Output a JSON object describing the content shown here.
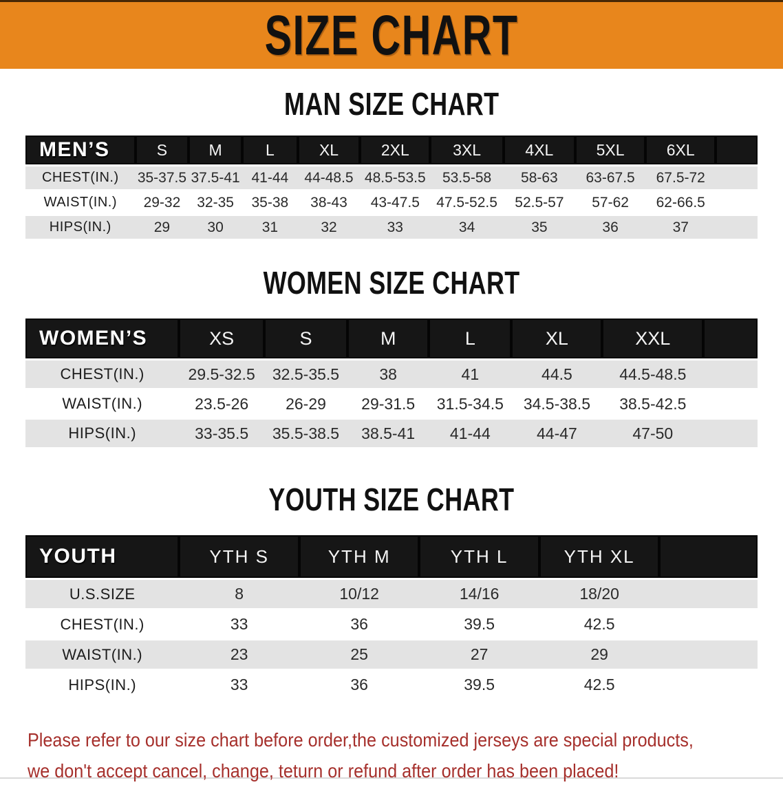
{
  "banner": {
    "title": "SIZE CHART"
  },
  "sections": {
    "men": {
      "heading": "MAN SIZE CHART",
      "table": {
        "label": "MEN’S",
        "headers": [
          "S",
          "M",
          "L",
          "XL",
          "2XL",
          "3XL",
          "4XL",
          "5XL",
          "6XL"
        ],
        "rows": [
          {
            "label": "CHEST(IN.)",
            "values": [
              "35-37.5",
              "37.5-41",
              "41-44",
              "44-48.5",
              "48.5-53.5",
              "53.5-58",
              "58-63",
              "63-67.5",
              "67.5-72"
            ]
          },
          {
            "label": "WAIST(IN.)",
            "values": [
              "29-32",
              "32-35",
              "35-38",
              "38-43",
              "43-47.5",
              "47.5-52.5",
              "52.5-57",
              "57-62",
              "62-66.5"
            ]
          },
          {
            "label": "HIPS(IN.)",
            "values": [
              "29",
              "30",
              "31",
              "32",
              "33",
              "34",
              "35",
              "36",
              "37"
            ]
          }
        ]
      }
    },
    "women": {
      "heading": "WOMEN SIZE CHART",
      "table": {
        "label": "WOMEN’S",
        "headers": [
          "XS",
          "S",
          "M",
          "L",
          "XL",
          "XXL"
        ],
        "rows": [
          {
            "label": "CHEST(IN.)",
            "values": [
              "29.5-32.5",
              "32.5-35.5",
              "38",
              "41",
              "44.5",
              "44.5-48.5"
            ]
          },
          {
            "label": "WAIST(IN.)",
            "values": [
              "23.5-26",
              "26-29",
              "29-31.5",
              "31.5-34.5",
              "34.5-38.5",
              "38.5-42.5"
            ]
          },
          {
            "label": "HIPS(IN.)",
            "values": [
              "33-35.5",
              "35.5-38.5",
              "38.5-41",
              "41-44",
              "44-47",
              "47-50"
            ]
          }
        ]
      }
    },
    "youth": {
      "heading": "YOUTH SIZE CHART",
      "table": {
        "label": "YOUTH",
        "headers": [
          "YTH S",
          "YTH M",
          "YTH L",
          "YTH XL"
        ],
        "rows": [
          {
            "label": "U.S.SIZE",
            "values": [
              "8",
              "10/12",
              "14/16",
              "18/20"
            ]
          },
          {
            "label": "CHEST(IN.)",
            "values": [
              "33",
              "36",
              "39.5",
              "42.5"
            ]
          },
          {
            "label": "WAIST(IN.)",
            "values": [
              "23",
              "25",
              "27",
              "29"
            ]
          },
          {
            "label": "HIPS(IN.)",
            "values": [
              "33",
              "36",
              "39.5",
              "42.5"
            ]
          }
        ]
      }
    }
  },
  "footer": {
    "lines": [
      "Please refer to our size chart before order,the customized jerseys are special products,",
      "we don't accept cancel, change, teturn or refund after order has been placed!"
    ]
  },
  "colors": {
    "banner_orange": "#e8861c",
    "bar_black": "#161616",
    "row_gray": "#e3e3e3",
    "footer_red": "#a6302c",
    "heading_black": "#111111"
  }
}
